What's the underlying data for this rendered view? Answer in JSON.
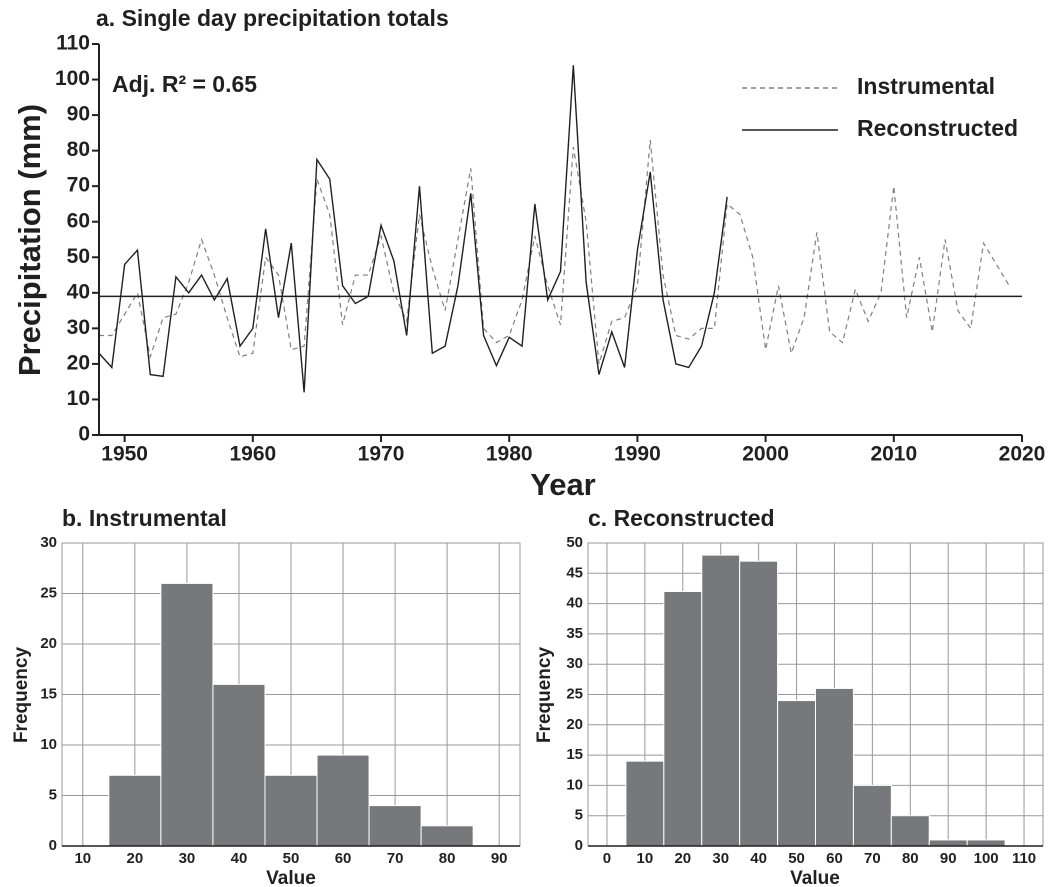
{
  "chart_data": [
    {
      "type": "line",
      "title": "a. Single day precipitation totals",
      "annotation": "Adj. R² = 0.65",
      "x_label": "Year",
      "y_label": "Precipitation (mm)",
      "x": [
        1948,
        1949,
        1950,
        1951,
        1952,
        1953,
        1954,
        1955,
        1956,
        1957,
        1958,
        1959,
        1960,
        1961,
        1962,
        1963,
        1964,
        1965,
        1966,
        1967,
        1968,
        1969,
        1970,
        1971,
        1972,
        1973,
        1974,
        1975,
        1976,
        1977,
        1978,
        1979,
        1980,
        1981,
        1982,
        1983,
        1984,
        1985,
        1986,
        1987,
        1988,
        1989,
        1990,
        1991,
        1992,
        1993,
        1994,
        1995,
        1996,
        1997,
        1998,
        1999,
        2000,
        2001,
        2002,
        2003,
        2004,
        2005,
        2006,
        2007,
        2008,
        2009,
        2010,
        2011,
        2012,
        2013,
        2014,
        2015,
        2016,
        2017,
        2018,
        2019
      ],
      "series": [
        {
          "name": "Instrumental",
          "color": "#808080",
          "style": "dashed",
          "values": [
            28,
            28,
            34,
            40,
            22,
            33,
            34,
            43,
            55,
            45,
            33,
            22,
            23,
            50,
            45,
            24,
            25,
            72,
            62,
            31,
            45,
            45,
            56,
            40,
            32,
            62,
            47,
            35,
            55,
            75,
            30,
            26,
            28,
            38,
            56,
            42,
            31,
            81,
            60,
            20,
            32,
            33,
            42,
            83,
            45,
            28,
            27,
            30,
            30,
            65,
            62,
            50,
            24,
            42,
            23,
            33,
            57,
            29,
            26,
            41,
            32,
            40,
            70,
            33,
            50,
            29,
            55,
            35,
            30,
            54,
            48,
            42
          ]
        },
        {
          "name": "Reconstructed",
          "color": "#231f20",
          "style": "solid",
          "values": [
            23,
            19,
            48,
            52,
            17,
            16.5,
            44.5,
            40,
            45,
            38,
            44,
            25,
            30,
            58,
            33,
            54,
            12,
            77.5,
            72,
            42,
            37,
            39,
            59,
            49,
            28,
            70,
            23,
            25,
            42,
            68,
            28,
            19.5,
            27.5,
            25,
            65,
            38,
            46,
            104,
            43,
            17,
            29,
            19,
            52,
            74,
            38,
            20,
            19,
            25,
            40,
            67,
            null,
            null,
            null,
            null,
            null,
            null,
            null,
            null,
            null,
            null,
            null,
            null,
            null,
            null,
            null,
            null,
            null,
            null,
            null,
            null,
            null,
            null
          ]
        }
      ],
      "hline": 39,
      "xlim": [
        1948,
        2020
      ],
      "xticks": [
        1950,
        1960,
        1970,
        1980,
        1990,
        2000,
        2010,
        2020
      ],
      "ylim": [
        0,
        110
      ],
      "yticks": [
        0,
        10,
        20,
        30,
        40,
        50,
        60,
        70,
        80,
        90,
        100,
        110
      ],
      "legend": "upper right",
      "grid": false
    },
    {
      "type": "histogram",
      "title": "b. Instrumental",
      "x_label": "Value",
      "y_label": "Frequency",
      "bins": [
        15,
        25,
        35,
        45,
        55,
        65,
        75,
        85
      ],
      "values": [
        7,
        26,
        16,
        7,
        9,
        4,
        2
      ],
      "color": "#77787b",
      "xlim": [
        6,
        94
      ],
      "xticks": [
        10,
        20,
        30,
        40,
        50,
        60,
        70,
        80,
        90
      ],
      "ylim": [
        0,
        30
      ],
      "yticks": [
        0,
        5,
        10,
        15,
        20,
        25,
        30
      ],
      "grid": true
    },
    {
      "type": "histogram",
      "title": "c. Reconstructed",
      "x_label": "Value",
      "y_label": "Frequency",
      "bins": [
        5,
        15,
        25,
        35,
        45,
        55,
        65,
        75,
        85,
        95,
        105
      ],
      "values": [
        14,
        42,
        48,
        47,
        24,
        26,
        10,
        5,
        1,
        1
      ],
      "color": "#77787b",
      "xlim": [
        -5,
        115
      ],
      "xticks": [
        0,
        10,
        20,
        30,
        40,
        50,
        60,
        70,
        80,
        90,
        100,
        110
      ],
      "ylim": [
        0,
        50
      ],
      "yticks": [
        0,
        5,
        10,
        15,
        20,
        25,
        30,
        35,
        40,
        45,
        50
      ],
      "grid": true
    }
  ]
}
